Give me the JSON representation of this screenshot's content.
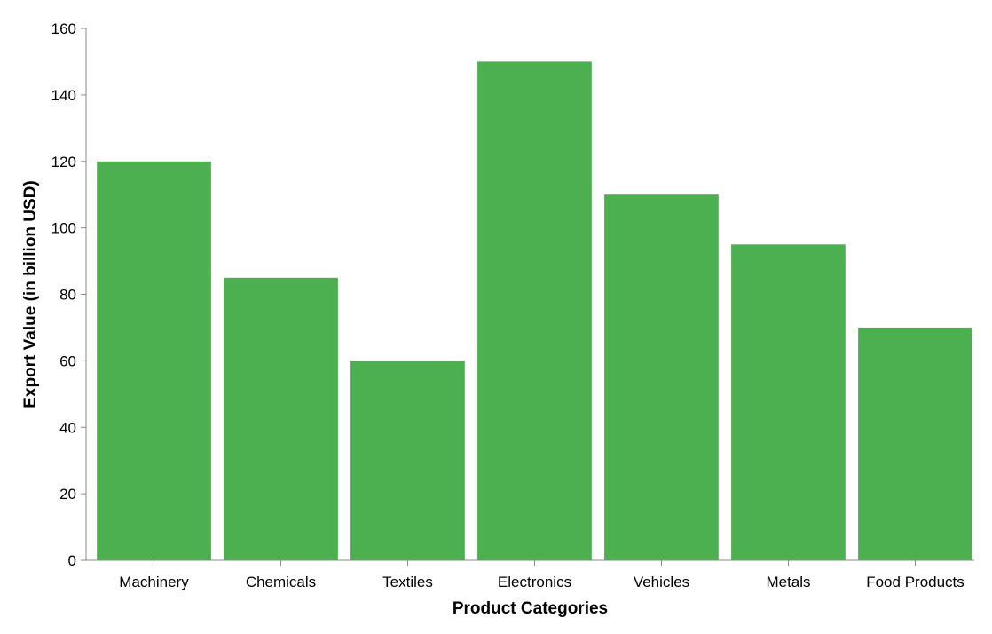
{
  "chart_data": {
    "type": "bar",
    "title": "",
    "xlabel": "Product Categories",
    "ylabel": "Export Value (in billion USD)",
    "categories": [
      "Machinery",
      "Chemicals",
      "Textiles",
      "Electronics",
      "Vehicles",
      "Metals",
      "Food Products"
    ],
    "values": [
      120,
      85,
      60,
      150,
      110,
      95,
      70
    ],
    "ylim": [
      0,
      160
    ],
    "yticks": [
      0,
      20,
      40,
      60,
      80,
      100,
      120,
      140,
      160
    ],
    "grid": false,
    "legend": "none",
    "bar_color": "#4caf50"
  }
}
